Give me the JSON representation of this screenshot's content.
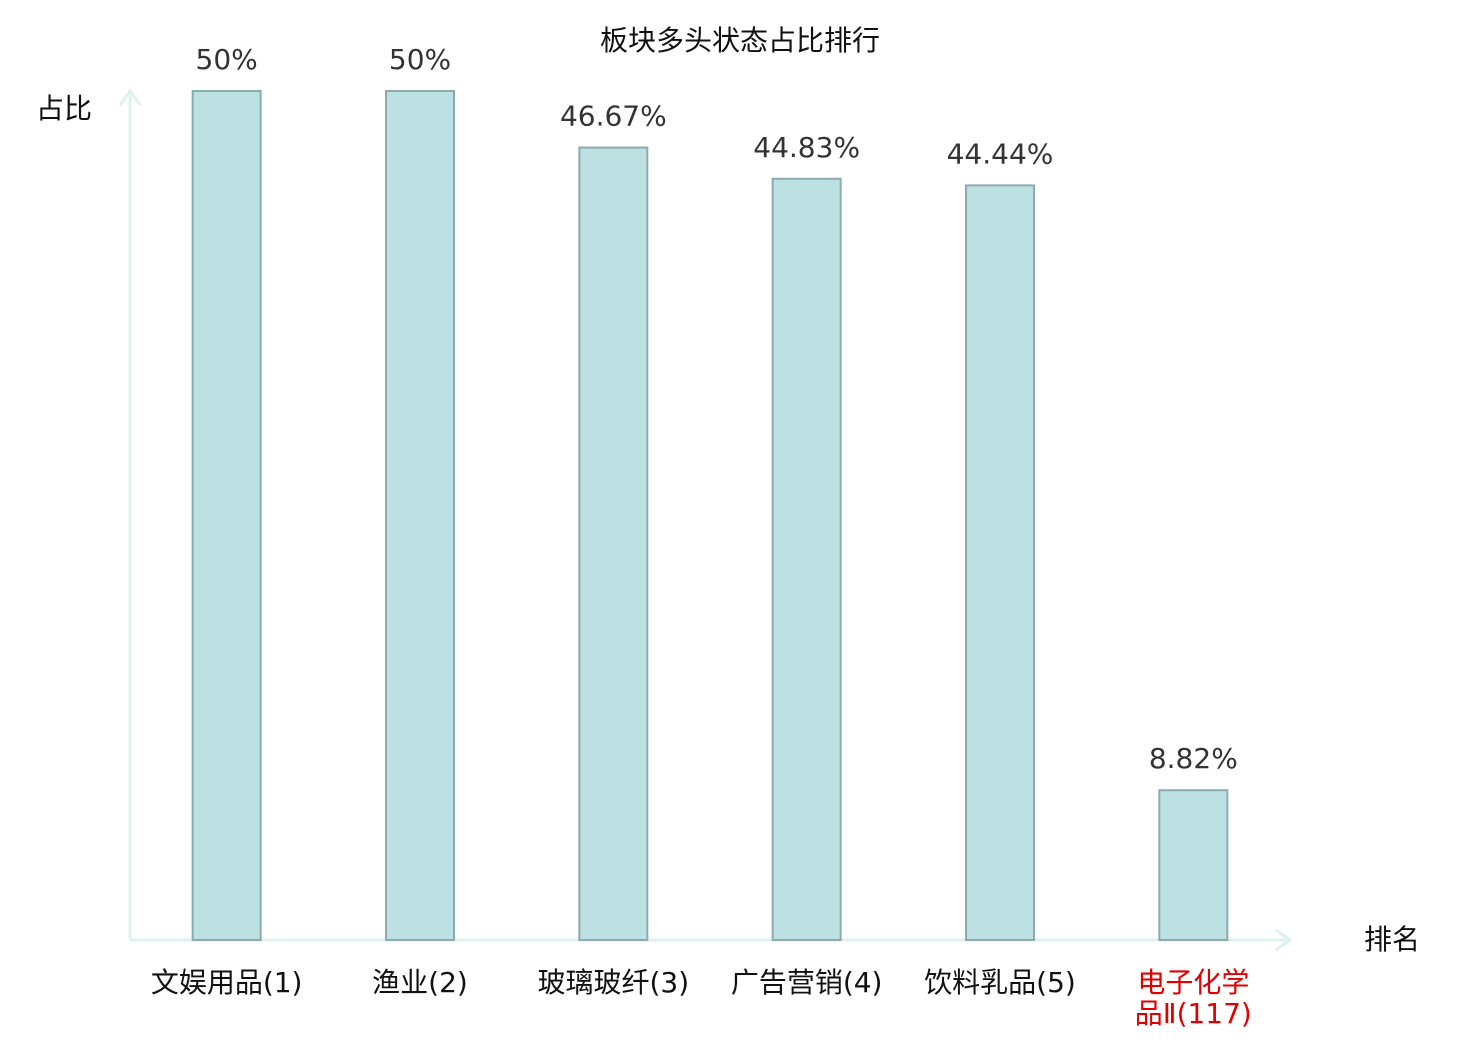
{
  "chart_data": {
    "type": "bar",
    "title": "板块多头状态占比排行",
    "y_label": "占比",
    "x_label": "排名",
    "categories": [
      "文娱用品(1)",
      "渔业(2)",
      "玻璃玻纤(3)",
      "广告营销(4)",
      "饮料乳品(5)",
      "电子化学品Ⅱ(117)"
    ],
    "category_colors": [
      "#111111",
      "#111111",
      "#111111",
      "#111111",
      "#111111",
      "#e00000"
    ],
    "values": [
      50,
      50,
      46.67,
      44.83,
      44.44,
      8.82
    ],
    "value_labels": [
      "50%",
      "50%",
      "46.67%",
      "44.83%",
      "44.44%",
      "8.82%"
    ],
    "color": "#bde0e3",
    "edge_color": "#8aabaf",
    "axis_color": "#dff2ef"
  }
}
